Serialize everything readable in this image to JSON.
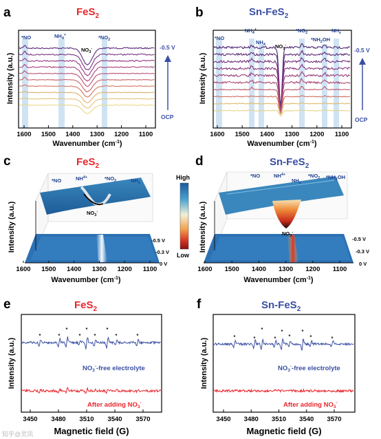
{
  "colors": {
    "red": "#e8262c",
    "blue": "#3a4fa3",
    "annot": "#1f3f8f",
    "highlight": "#cfe3f3"
  },
  "panels": {
    "a": {
      "letter": "a",
      "title": "FeS",
      "title_sub": "2",
      "ylabel": "Intensity (a.u.)",
      "xlabel": "Wavenumber (cm",
      "xlabel_sup": "-1",
      "xlabel_end": ")",
      "ticks": [
        "1600",
        "1500",
        "1400",
        "1300",
        "1200",
        "1100"
      ],
      "annotations": [
        {
          "t": "*NO"
        },
        {
          "t": "NH",
          "sub": "4",
          "sup": "+"
        },
        {
          "t": "NO",
          "sub": "3",
          "sup": "-"
        },
        {
          "t": "*NO",
          "sub": "2"
        }
      ],
      "v_top": "-0.5 V",
      "v_bottom": "OCP"
    },
    "b": {
      "letter": "b",
      "title": "Sn-FeS",
      "title_sub": "2",
      "ylabel": "Intensity (a.u.)",
      "xlabel": "Wavenumber (cm",
      "xlabel_sup": "-1",
      "xlabel_end": ")",
      "ticks": [
        "1600",
        "1500",
        "1400",
        "1300",
        "1200",
        "1100"
      ],
      "annotations": [
        {
          "t": "*NO"
        },
        {
          "t": "NH",
          "sub": "4",
          "sup": "+"
        },
        {
          "t": "NH",
          "sub": "4"
        },
        {
          "t": "NO",
          "sub": "3",
          "sup": "-"
        },
        {
          "t": "*NO",
          "sub": "2"
        },
        {
          "t": "*NH",
          "sub": "2",
          "end": "OH"
        },
        {
          "t": "NH",
          "sub": "x"
        }
      ],
      "v_top": "-0.5 V",
      "v_bottom": "OCP"
    },
    "c": {
      "letter": "c",
      "title": "FeS",
      "title_sub": "2",
      "ylabel": "Intensity (a.u.)",
      "xlabel": "Wavenumber (cm",
      "xlabel_sup": "-1",
      "xlabel_end": ")",
      "ticks": [
        "1600",
        "1500",
        "1400",
        "1300",
        "1200",
        "1100"
      ],
      "annotations": [
        {
          "t": "*NO"
        },
        {
          "t": "NH",
          "sup": "4+"
        },
        {
          "t": "*NO",
          "sub": "2"
        },
        {
          "t": "NH",
          "sub": "x"
        },
        {
          "t": "NO",
          "sub": "3",
          "sup": "-"
        }
      ],
      "potentials": [
        "-0.5 V",
        "-0.3 V",
        "0 V"
      ]
    },
    "d": {
      "letter": "d",
      "title": "Sn-FeS",
      "title_sub": "2",
      "ylabel": "Intensity (a.u.)",
      "xlabel": "Wavenumber (cm",
      "xlabel_sup": "-1",
      "xlabel_end": ")",
      "ticks": [
        "1600",
        "1500",
        "1400",
        "1300",
        "1200",
        "1100"
      ],
      "annotations": [
        {
          "t": "*NO"
        },
        {
          "t": "NH",
          "sup": "4+"
        },
        {
          "t": "NH",
          "sub": "x"
        },
        {
          "t": "*NO",
          "sub": "2"
        },
        {
          "t": "*NH",
          "sub": "2",
          "end": "OH"
        },
        {
          "t": "NO",
          "sub": "3",
          "sup": "-"
        }
      ],
      "potentials": [
        "-0.5 V",
        "-0.3 V",
        "0 V"
      ]
    },
    "colorbar": {
      "high": "High",
      "low": "Low"
    },
    "e": {
      "letter": "e",
      "title": "FeS",
      "title_sub": "2",
      "ylabel": "Intensity (a.u.)",
      "xlabel": "Magnetic field (G)",
      "ticks": [
        "3450",
        "3480",
        "3510",
        "3540",
        "3570"
      ],
      "blue_label": {
        "a": "NO",
        "sub": "3",
        "sup": "-",
        "b": "-free electrolyte"
      },
      "red_label": {
        "a": "After adding NO",
        "sub": "3",
        "sup": "-"
      }
    },
    "f": {
      "letter": "f",
      "title": "Sn-FeS",
      "title_sub": "2",
      "ylabel": "Intensity (a.u.)",
      "xlabel": "Magnetic field (G)",
      "ticks": [
        "3450",
        "3480",
        "3510",
        "3540",
        "3570"
      ],
      "blue_label": {
        "a": "NO",
        "sub": "3",
        "sup": "-",
        "b": "-free electrolyte"
      },
      "red_label": {
        "a": "After adding NO",
        "sub": "3",
        "sup": "-"
      }
    }
  },
  "watermark": "知乎@灵凤"
}
